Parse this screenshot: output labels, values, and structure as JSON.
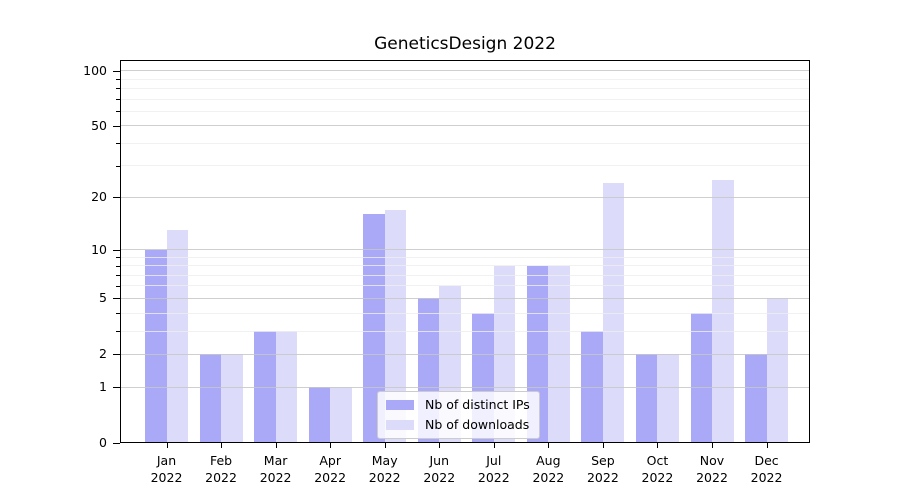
{
  "chart_data": {
    "type": "bar",
    "title": "GeneticsDesign 2022",
    "categories": [
      "Jan",
      "Feb",
      "Mar",
      "Apr",
      "May",
      "Jun",
      "Jul",
      "Aug",
      "Sep",
      "Oct",
      "Nov",
      "Dec"
    ],
    "x_year": "2022",
    "series": [
      {
        "name": "Nb of distinct IPs",
        "color": "#a9a9f7",
        "values": [
          10,
          2,
          3,
          1,
          16,
          5,
          4,
          8,
          3,
          2,
          4,
          2
        ]
      },
      {
        "name": "Nb of downloads",
        "color": "#dcdcfa",
        "values": [
          13,
          2,
          3,
          1,
          17,
          6,
          8,
          8,
          24,
          2,
          25,
          5
        ]
      }
    ],
    "y_scale": "log1p",
    "ylim": [
      0,
      100
    ],
    "y_major_ticks": [
      100,
      50,
      20,
      10,
      5,
      2,
      1,
      0
    ],
    "y_minor_ticks": [
      3,
      4,
      6,
      7,
      8,
      9,
      30,
      40,
      60,
      70,
      80,
      90
    ],
    "grid": "horizontal",
    "legend_position": "bottom-center"
  }
}
